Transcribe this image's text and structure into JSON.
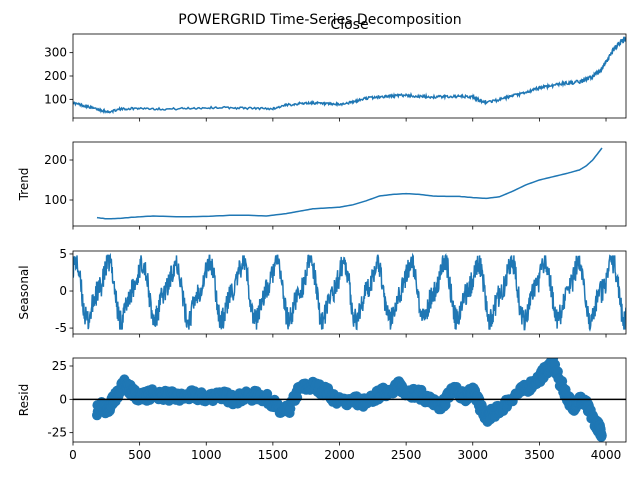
{
  "figure": {
    "title": "POWERGRID Time-Series Decomposition"
  },
  "chart_data": [
    {
      "type": "line",
      "panel": "observed",
      "title": "Close",
      "ylabel": "",
      "xlim": [
        0,
        4150
      ],
      "ylim": [
        20,
        380
      ],
      "yticks": [
        100,
        200,
        300
      ],
      "xticks": [
        0,
        500,
        1000,
        1500,
        2000,
        2500,
        3000,
        3500,
        4000
      ],
      "show_xtick_labels": false,
      "color": "#1f77b4",
      "x": [
        0,
        100,
        200,
        270,
        350,
        500,
        700,
        900,
        1100,
        1300,
        1500,
        1600,
        1700,
        1800,
        1900,
        2000,
        2100,
        2200,
        2300,
        2400,
        2500,
        2600,
        2700,
        2800,
        2900,
        3000,
        3050,
        3100,
        3200,
        3300,
        3400,
        3500,
        3600,
        3700,
        3800,
        3850,
        3900,
        3950,
        4000,
        4050,
        4100,
        4150
      ],
      "y": [
        85,
        70,
        55,
        45,
        58,
        62,
        58,
        62,
        65,
        62,
        60,
        75,
        82,
        85,
        80,
        78,
        88,
        105,
        110,
        115,
        118,
        112,
        110,
        112,
        112,
        110,
        95,
        88,
        98,
        115,
        128,
        150,
        160,
        170,
        175,
        185,
        200,
        215,
        260,
        310,
        340,
        360
      ]
    },
    {
      "type": "line",
      "panel": "trend",
      "title": "",
      "ylabel": "Trend",
      "xlim": [
        0,
        4150
      ],
      "ylim": [
        35,
        245
      ],
      "yticks": [
        100,
        200
      ],
      "xticks": [
        0,
        500,
        1000,
        1500,
        2000,
        2500,
        3000,
        3500,
        4000
      ],
      "show_xtick_labels": false,
      "color": "#1f77b4",
      "x": [
        180,
        250,
        350,
        450,
        600,
        800,
        1000,
        1200,
        1300,
        1450,
        1600,
        1700,
        1800,
        1900,
        2000,
        2100,
        2200,
        2300,
        2400,
        2500,
        2600,
        2700,
        2800,
        2900,
        3000,
        3100,
        3200,
        3300,
        3400,
        3500,
        3600,
        3700,
        3800,
        3850,
        3900,
        3970
      ],
      "y": [
        56,
        53,
        54,
        57,
        60,
        58,
        59,
        62,
        62,
        60,
        66,
        72,
        78,
        80,
        82,
        88,
        98,
        110,
        114,
        116,
        114,
        110,
        109,
        109,
        106,
        104,
        108,
        122,
        138,
        150,
        158,
        166,
        175,
        185,
        200,
        230
      ]
    },
    {
      "type": "line",
      "panel": "seasonal",
      "title": "",
      "ylabel": "Seasonal",
      "xlim": [
        0,
        4150
      ],
      "ylim": [
        -5.8,
        5.4
      ],
      "yticks": [
        -5,
        0,
        5
      ],
      "xticks": [
        0,
        500,
        1000,
        1500,
        2000,
        2500,
        3000,
        3500,
        4000
      ],
      "show_xtick_labels": false,
      "color": "#1f77b4",
      "period": 252,
      "amplitude": 4.5,
      "x_start": 0,
      "x_end": 4150
    },
    {
      "type": "scatter",
      "panel": "resid",
      "title": "",
      "ylabel": "Resid",
      "xlim": [
        0,
        4150
      ],
      "ylim": [
        -32,
        31
      ],
      "yticks": [
        -25,
        0,
        25
      ],
      "xticks": [
        0,
        500,
        1000,
        1500,
        2000,
        2500,
        3000,
        3500,
        4000
      ],
      "xtick_labels": [
        "0",
        "500",
        "1000",
        "1500",
        "2000",
        "2500",
        "3000",
        "3500",
        "4000"
      ],
      "show_xtick_labels": true,
      "color": "#1f77b4",
      "zero_line": true,
      "x": [
        180,
        220,
        260,
        300,
        340,
        380,
        420,
        460,
        520,
        600,
        700,
        800,
        900,
        1000,
        1100,
        1200,
        1300,
        1400,
        1500,
        1560,
        1620,
        1700,
        1800,
        1900,
        2000,
        2100,
        2200,
        2300,
        2400,
        2450,
        2500,
        2600,
        2700,
        2750,
        2800,
        2850,
        2900,
        2950,
        3000,
        3050,
        3100,
        3150,
        3200,
        3300,
        3400,
        3500,
        3550,
        3600,
        3650,
        3700,
        3750,
        3800,
        3850,
        3900,
        3950,
        3970
      ],
      "y": [
        -8,
        -4,
        -10,
        0,
        4,
        12,
        8,
        4,
        2,
        4,
        3,
        1,
        3,
        1,
        4,
        0,
        2,
        3,
        -2,
        -10,
        -8,
        8,
        10,
        6,
        -2,
        0,
        -3,
        4,
        8,
        10,
        6,
        4,
        -2,
        -6,
        0,
        8,
        4,
        2,
        8,
        -4,
        -14,
        -10,
        -8,
        2,
        8,
        16,
        22,
        28,
        14,
        4,
        -6,
        0,
        -4,
        -14,
        -22,
        -26
      ]
    }
  ]
}
